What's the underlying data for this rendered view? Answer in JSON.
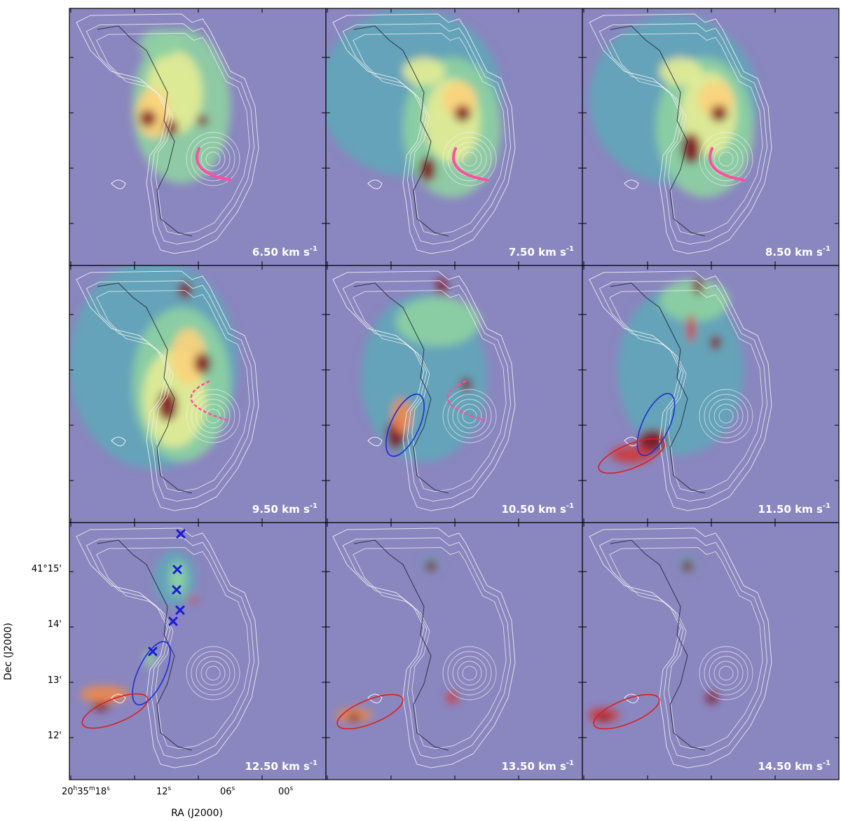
{
  "figure": {
    "background_color": "#8a86bf",
    "grid": {
      "rows": 3,
      "cols": 3
    },
    "panels": [
      {
        "velocity_label": "6.50 km s",
        "superscript": "-1"
      },
      {
        "velocity_label": "7.50 km s",
        "superscript": "-1"
      },
      {
        "velocity_label": "8.50 km s",
        "superscript": "-1"
      },
      {
        "velocity_label": "9.50 km s",
        "superscript": "-1"
      },
      {
        "velocity_label": "10.50 km s",
        "superscript": "-1"
      },
      {
        "velocity_label": "11.50 km s",
        "superscript": "-1"
      },
      {
        "velocity_label": "12.50 km s",
        "superscript": "-1"
      },
      {
        "velocity_label": "13.50 km s",
        "superscript": "-1"
      },
      {
        "velocity_label": "14.50 km s",
        "superscript": "-1"
      }
    ],
    "y_axis": {
      "title": "Dec (J2000)",
      "tick_labels": [
        "41°15'",
        "14'",
        "13'",
        "12'"
      ]
    },
    "x_axis": {
      "title": "RA (J2000)",
      "tick_labels": [
        {
          "main": "20",
          "sup1": "h",
          "mid": "35",
          "sup2": "m",
          "tail": "18",
          "sup3": "s"
        },
        {
          "main": "12",
          "sup3": "s"
        },
        {
          "main": "06",
          "sup3": "s"
        },
        {
          "main": "00",
          "sup3": "s"
        }
      ]
    },
    "annotation_colors": {
      "red_ellipse": "#dd1f1f",
      "blue_ellipse": "#1c2fd6",
      "pink_arc": "#ff4fa0",
      "cross_marker": "#1a1adb",
      "contour_white": "#f2f2f2",
      "contour_dark": "#1c1c2c"
    },
    "colormap": [
      "#8a86bf",
      "#5fa6b8",
      "#8fd1a2",
      "#e4ec95",
      "#fcd27b",
      "#f08a4b",
      "#d03636",
      "#7e0f1e"
    ]
  }
}
